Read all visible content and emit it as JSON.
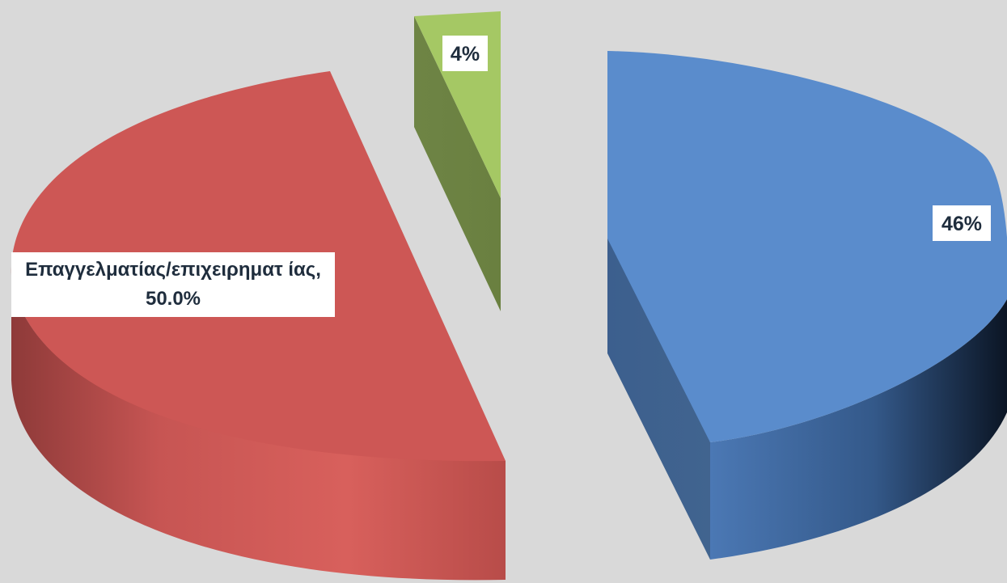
{
  "chart_data": {
    "type": "pie",
    "style": "3d-exploded",
    "slices": [
      {
        "key": "blue",
        "value": 46,
        "color": "#5a8ccc",
        "label": "46%"
      },
      {
        "key": "red",
        "value": 50,
        "color": "#cd5755",
        "label": "Επαγγελματίας/επιχειρηματ ίας, 50.0%",
        "category": "Επαγγελματίας/επιχειρηματίας"
      },
      {
        "key": "green",
        "value": 4,
        "color": "#a5c864",
        "label": "4%"
      }
    ]
  }
}
